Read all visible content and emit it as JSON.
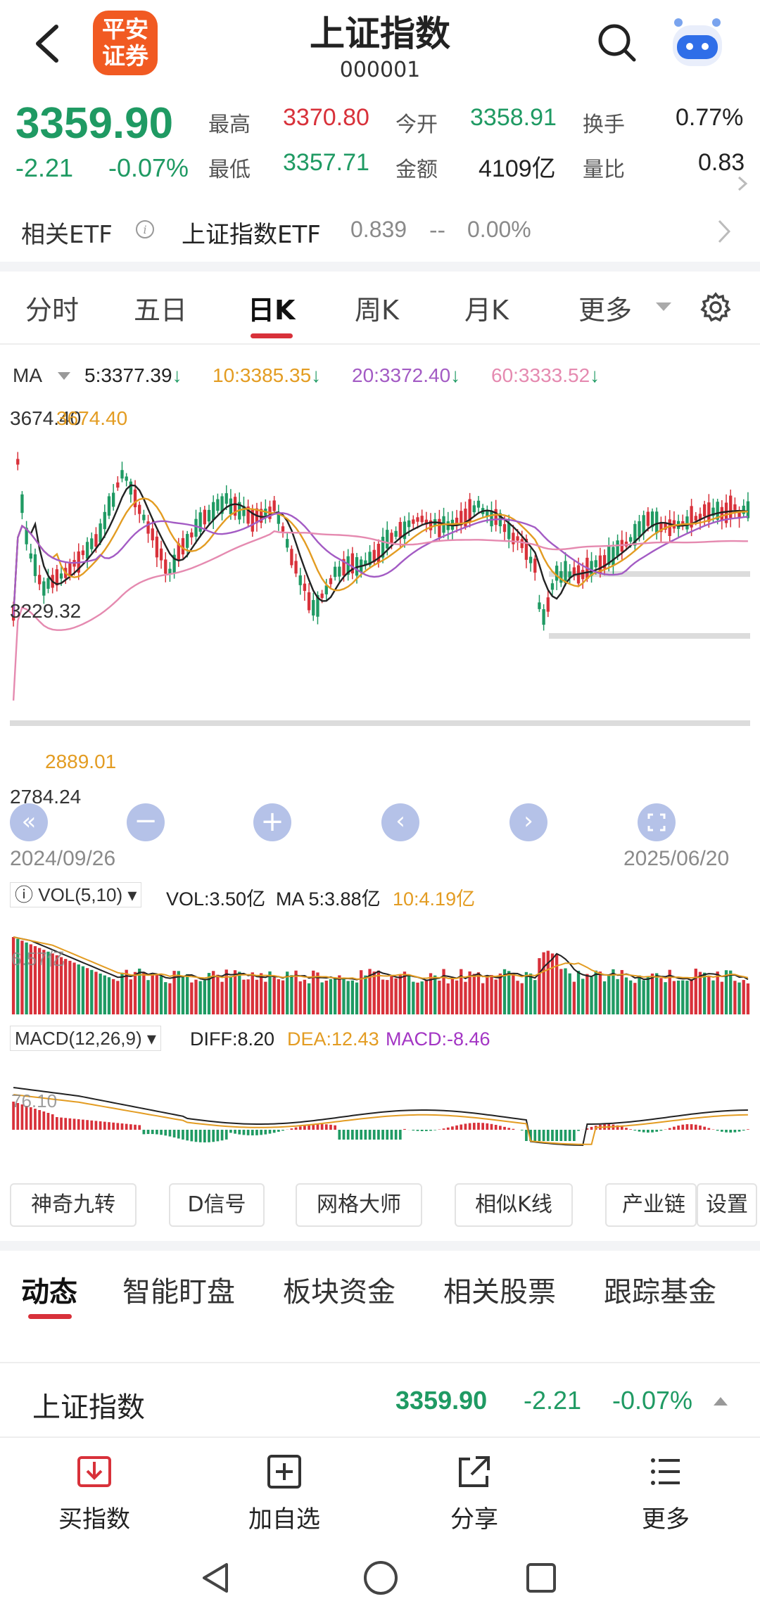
{
  "header": {
    "logo_text": "平安证券",
    "logo_line1": "平安",
    "logo_line2": "证券",
    "title": "上证指数",
    "code": "000001"
  },
  "quote": {
    "price": "3359.90",
    "change": "-2.21",
    "change_pct": "-0.07%",
    "high_label": "最高",
    "high": "3370.80",
    "low_label": "最低",
    "low": "3357.71",
    "open_label": "今开",
    "open": "3358.91",
    "amount_label": "金额",
    "amount": "4109亿",
    "turnover_label": "换手",
    "turnover": "0.77%",
    "volume_ratio_label": "量比",
    "volume_ratio": "0.83"
  },
  "etf": {
    "label": "相关ETF",
    "name": "上证指数ETF",
    "price": "0.839",
    "change": "--",
    "change_pct": "0.00%"
  },
  "tabs": [
    "分时",
    "五日",
    "日K",
    "周K",
    "月K",
    "更多"
  ],
  "active_tab": "日K",
  "ma_legend": {
    "title": "MA",
    "ma5": "5:3377.39",
    "ma10": "10:3385.35",
    "ma20": "20:3372.40",
    "ma60": "60:3333.52"
  },
  "chart": {
    "price_labels": {
      "max": "3674.40",
      "max_overlay": "3674.40",
      "mid": "3229.32",
      "low_mark": "2889.01",
      "min": "2784.24"
    },
    "date_start": "2024/09/26",
    "date_end": "2025/06/20",
    "vol_label": "VOL(5,10)",
    "vol_value": "VOL:3.50亿",
    "vol_ma5": "MA 5:3.88亿",
    "vol_ma10": "10:4.19亿",
    "vol_axis": "6.57亿",
    "macd_label": "MACD(12,26,9)",
    "diff": "DIFF:8.20",
    "dea": "DEA:12.43",
    "macd": "MACD:-8.46",
    "macd_axis": "76.10"
  },
  "colors": {
    "up": "#d8313a",
    "down": "#1f9a63",
    "ma5": "#222222",
    "ma10": "#e39c22",
    "ma20": "#a35bc4",
    "ma60": "#e58ab0"
  },
  "tools": [
    "神奇九转",
    "D信号",
    "网格大师",
    "相似K线",
    "产业链",
    "设置"
  ],
  "sections": [
    "动态",
    "智能盯盘",
    "板块资金",
    "相关股票",
    "跟踪基金"
  ],
  "ticker": {
    "name": "上证指数",
    "price": "3359.90",
    "change": "-2.21",
    "change_pct": "-0.07%"
  },
  "nav": [
    "买指数",
    "加自选",
    "分享",
    "更多"
  ],
  "icons": {
    "back": "back-arrow-icon",
    "search": "search-icon",
    "assistant": "robot-assistant-icon",
    "settings": "gear-icon"
  }
}
